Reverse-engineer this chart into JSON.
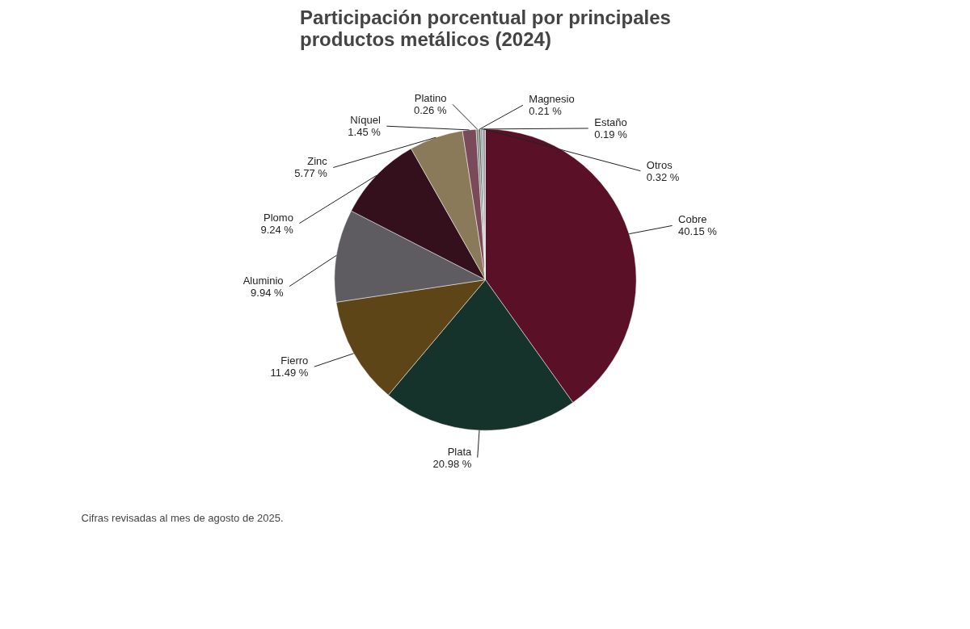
{
  "chart_data": {
    "type": "pie",
    "title": "Participación porcentual por principales\nproductos metálicos (2024)",
    "categories": [
      "Cobre",
      "Plata",
      "Fierro",
      "Aluminio",
      "Plomo",
      "Zinc",
      "Níquel",
      "Platino",
      "Magnesio",
      "Estaño",
      "Otros"
    ],
    "values": [
      40.15,
      20.98,
      11.49,
      9.94,
      9.24,
      5.77,
      1.45,
      0.26,
      0.21,
      0.19,
      0.32
    ],
    "colors": [
      "#5a1128",
      "#15332a",
      "#5e4517",
      "#5e5c60",
      "#33101c",
      "#8a7a5a",
      "#7a4a5a",
      "#7a8a80",
      "#556055",
      "#8a9090",
      "#a0a0a8"
    ],
    "value_labels": [
      "40.15 %",
      "20.98 %",
      "11.49 %",
      "9.94 %",
      "9.24 %",
      "5.77 %",
      "1.45 %",
      "0.26 %",
      "0.21 %",
      "0.19 %",
      "0.32 %"
    ],
    "annotations": [
      "Cifras revisadas al mes de agosto de 2025."
    ]
  }
}
